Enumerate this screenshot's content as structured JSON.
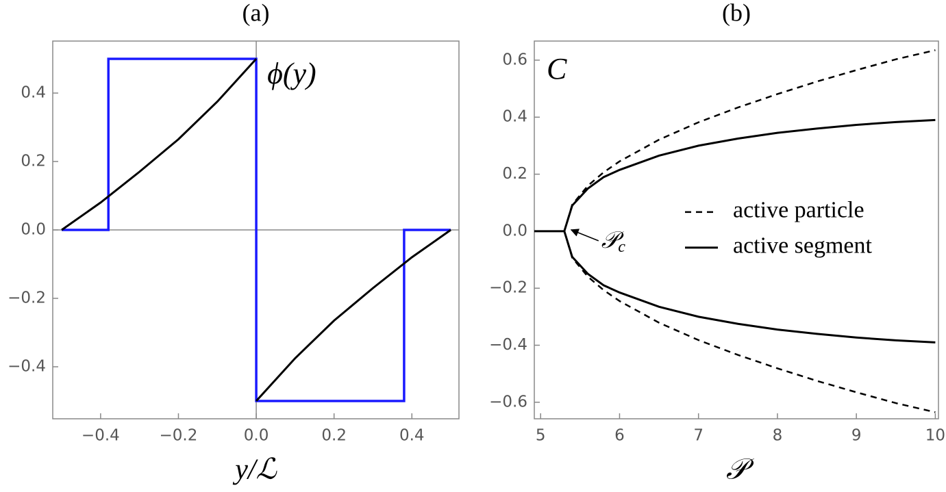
{
  "chart_data": [
    {
      "type": "line",
      "title": "(a)",
      "xlabel": "y/ℒ",
      "annotation": "ϕ(y)",
      "xlim": [
        -0.523,
        0.521
      ],
      "ylim": [
        -0.552,
        0.552
      ],
      "xticks": [
        {
          "value": -0.4,
          "label": "−0.4"
        },
        {
          "value": -0.2,
          "label": "−0.2"
        },
        {
          "value": 0,
          "label": "0.0"
        },
        0.2,
        0.4
      ],
      "yticks": [
        {
          "value": -0.4,
          "label": "−0.4"
        },
        {
          "value": -0.2,
          "label": "−0.2"
        },
        {
          "value": 0,
          "label": "0.0"
        },
        0.2,
        0.4
      ],
      "zero_lines": true,
      "series": [
        {
          "color": "#1a1aff",
          "width": 3.5,
          "dashed": false,
          "x": [
            -0.5,
            -0.38,
            -0.38,
            0,
            0,
            0.38,
            0.38,
            0.5
          ],
          "values": [
            0,
            0,
            0.5,
            0.5,
            -0.5,
            -0.5,
            0,
            0
          ]
        },
        {
          "color": "#000000",
          "width": 3,
          "dashed": false,
          "x": [
            -0.5,
            -0.4,
            -0.3,
            -0.2,
            -0.1,
            0
          ],
          "values": [
            0,
            0.08,
            0.17,
            0.265,
            0.375,
            0.5
          ]
        },
        {
          "color": "#000000",
          "width": 3,
          "dashed": false,
          "x": [
            0,
            0.1,
            0.2,
            0.3,
            0.4,
            0.5
          ],
          "values": [
            -0.5,
            -0.375,
            -0.265,
            -0.17,
            -0.08,
            0
          ]
        }
      ]
    },
    {
      "type": "line",
      "title": "(b)",
      "xlabel": "𝒫",
      "ylabel": "C",
      "annotation": {
        "text": "𝒫",
        "subscript": "c"
      },
      "xlim": [
        4.92,
        10.04
      ],
      "ylim": [
        -0.658,
        0.667
      ],
      "xticks": [
        5,
        6,
        7,
        8,
        9,
        10
      ],
      "yticks": [
        {
          "value": -0.6,
          "label": "−0.6"
        },
        {
          "value": -0.4,
          "label": "−0.4"
        },
        {
          "value": -0.2,
          "label": "−0.2"
        },
        {
          "value": 0,
          "label": "0.0"
        },
        0.2,
        0.4,
        0.6
      ],
      "zero_lines": false,
      "legend": "right",
      "series": [
        {
          "name": "active particle",
          "color": "#000000",
          "width": 2.5,
          "dashed": true,
          "x": [
            5.3,
            5.4,
            5.6,
            5.8,
            6,
            6.5,
            7,
            7.5,
            8,
            8.5,
            9,
            9.5,
            10
          ],
          "values": [
            0,
            0.093,
            0.16,
            0.207,
            0.245,
            0.321,
            0.382,
            0.434,
            0.481,
            0.525,
            0.565,
            0.603,
            0.635
          ]
        },
        {
          "color": "#000000",
          "width": 2.5,
          "dashed": true,
          "x": [
            5.3,
            5.4,
            5.6,
            5.8,
            6,
            6.5,
            7,
            7.5,
            8,
            8.5,
            9,
            9.5,
            10
          ],
          "values": [
            0,
            -0.093,
            -0.16,
            -0.207,
            -0.245,
            -0.321,
            -0.382,
            -0.434,
            -0.481,
            -0.525,
            -0.565,
            -0.603,
            -0.635
          ]
        },
        {
          "name": "active segment",
          "color": "#000000",
          "width": 3,
          "dashed": false,
          "x": [
            5.3,
            5.4,
            5.6,
            5.8,
            6,
            6.5,
            7,
            7.5,
            8,
            8.5,
            9,
            9.5,
            10
          ],
          "values": [
            0,
            0.09,
            0.15,
            0.19,
            0.215,
            0.265,
            0.3,
            0.325,
            0.345,
            0.36,
            0.373,
            0.383,
            0.39
          ]
        },
        {
          "color": "#000000",
          "width": 3,
          "dashed": false,
          "x": [
            5.3,
            5.4,
            5.6,
            5.8,
            6,
            6.5,
            7,
            7.5,
            8,
            8.5,
            9,
            9.5,
            10
          ],
          "values": [
            0,
            -0.09,
            -0.15,
            -0.19,
            -0.215,
            -0.265,
            -0.3,
            -0.325,
            -0.345,
            -0.36,
            -0.373,
            -0.383,
            -0.39
          ]
        },
        {
          "color": "#000000",
          "width": 3,
          "dashed": false,
          "x": [
            4.92,
            5.3
          ],
          "values": [
            0,
            0
          ]
        }
      ]
    }
  ]
}
